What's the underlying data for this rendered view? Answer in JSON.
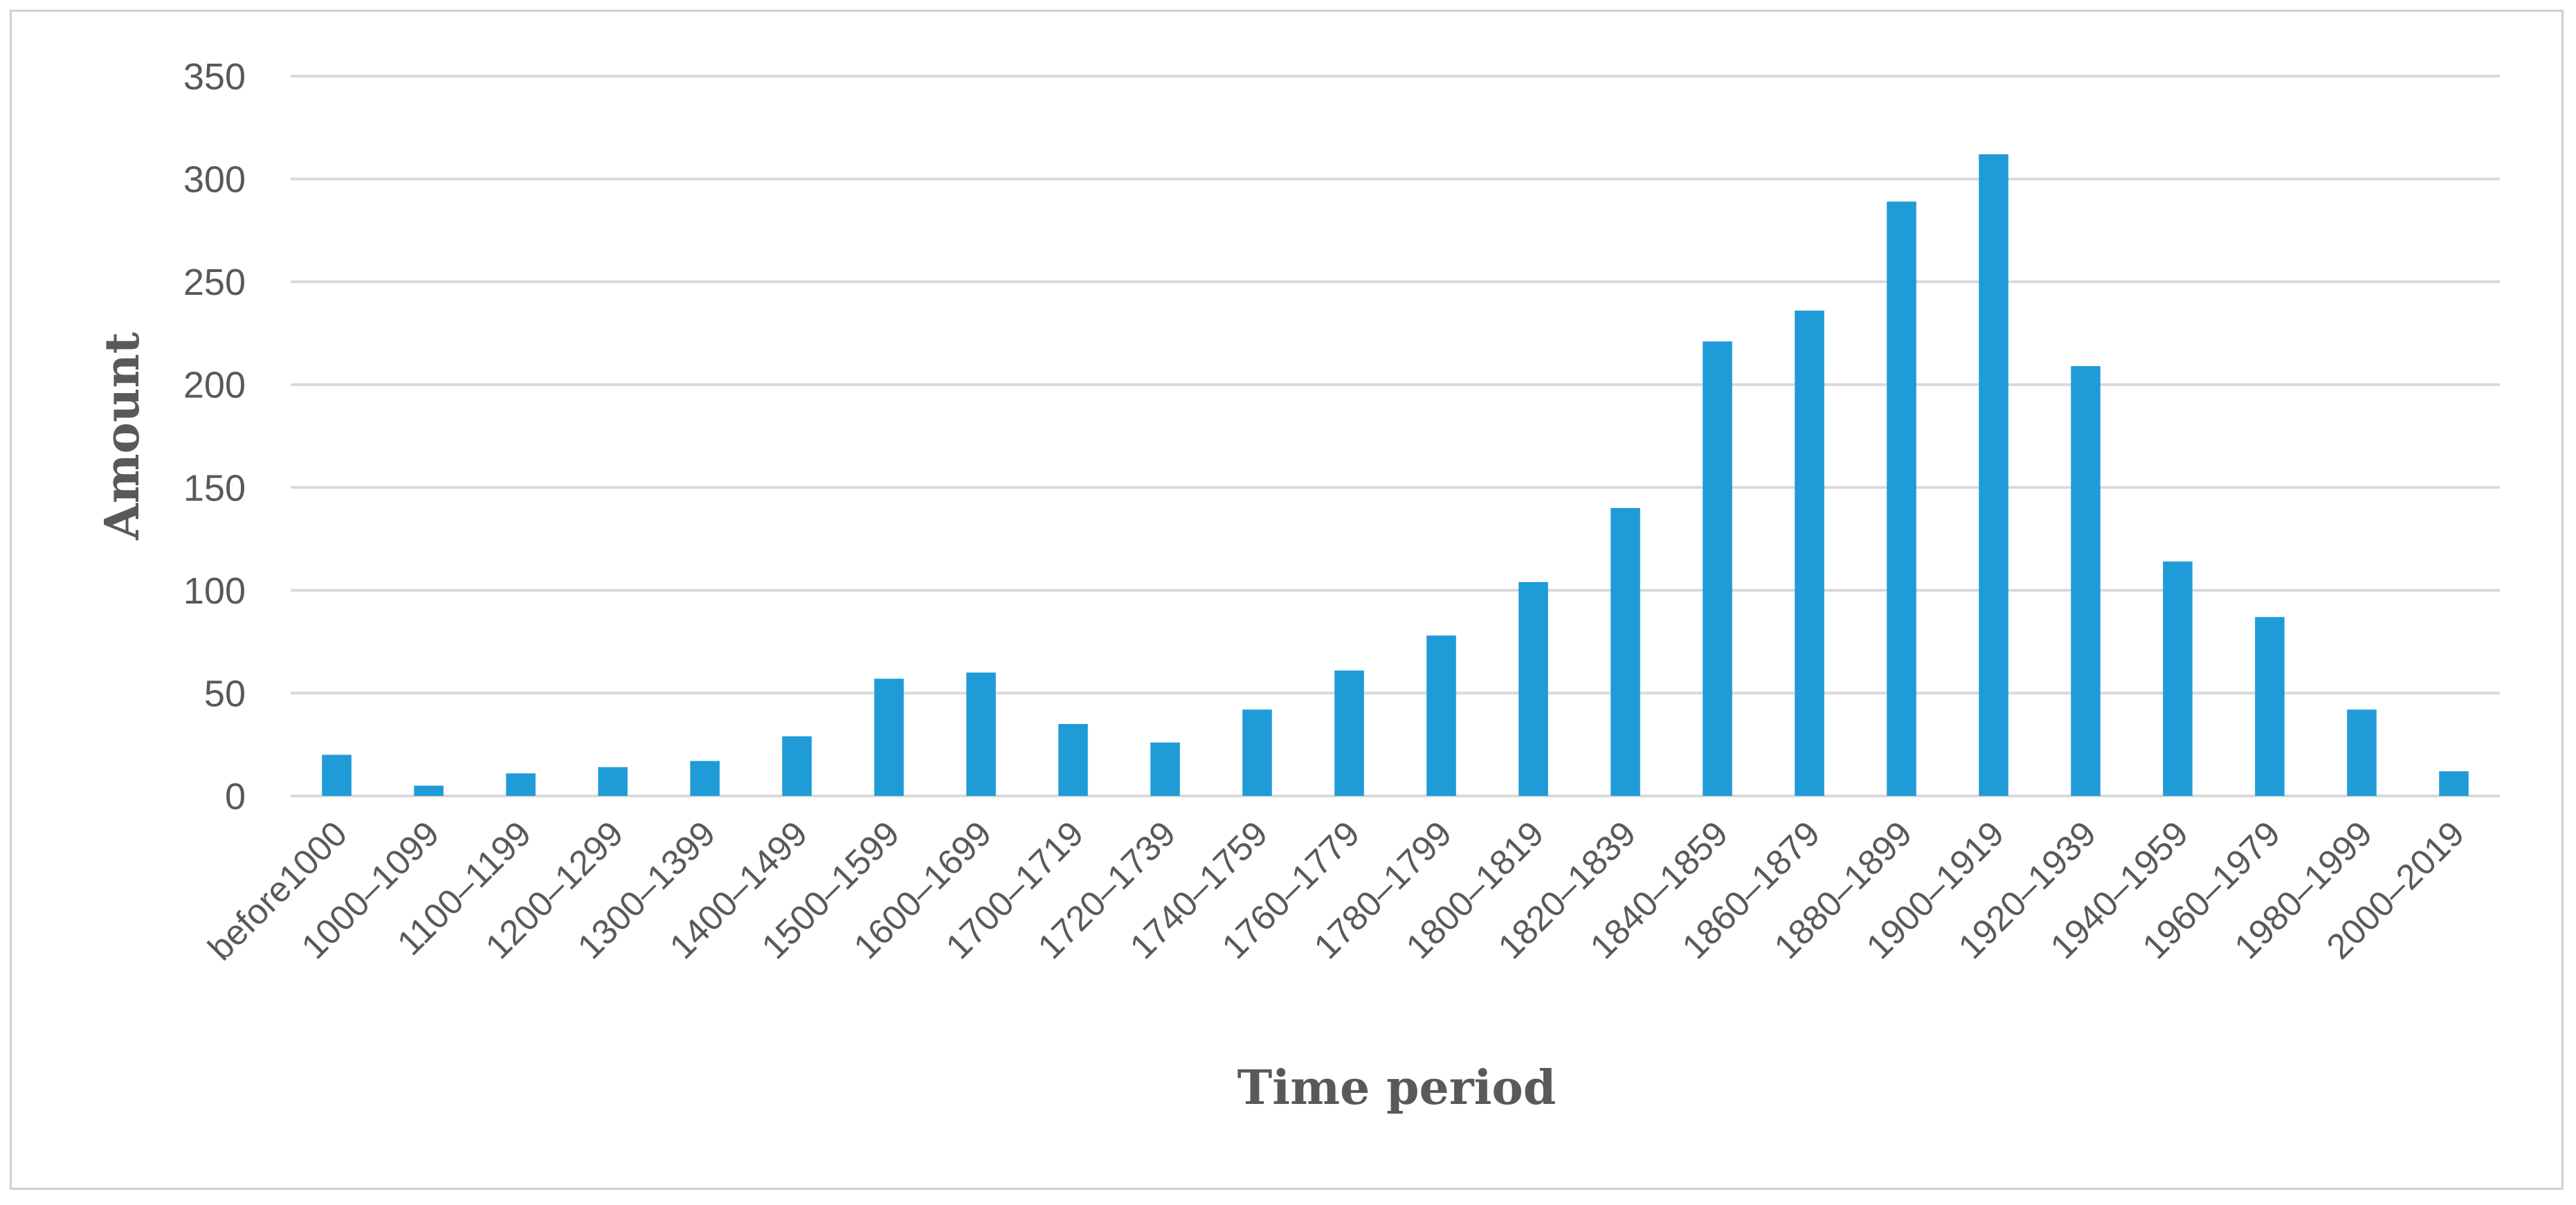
{
  "chart_data": {
    "type": "bar",
    "categories": [
      "before1000",
      "1000–1099",
      "1100–1199",
      "1200–1299",
      "1300–1399",
      "1400–1499",
      "1500–1599",
      "1600–1699",
      "1700–1719",
      "1720–1739",
      "1740–1759",
      "1760–1779",
      "1780–1799",
      "1800–1819",
      "1820–1839",
      "1840–1859",
      "1860–1879",
      "1880–1899",
      "1900–1919",
      "1920–1939",
      "1940–1959",
      "1960–1979",
      "1980–1999",
      "2000–2019"
    ],
    "values": [
      20,
      5,
      11,
      14,
      17,
      29,
      57,
      60,
      35,
      26,
      42,
      61,
      78,
      104,
      140,
      221,
      236,
      289,
      312,
      209,
      114,
      87,
      42,
      12
    ],
    "xlabel": "Time period",
    "ylabel": "Amount",
    "ylim": [
      0,
      350
    ],
    "yticks": [
      0,
      50,
      100,
      150,
      200,
      250,
      300,
      350
    ],
    "grid": true,
    "legend": "none",
    "bar_color": "#1f9bd7"
  }
}
